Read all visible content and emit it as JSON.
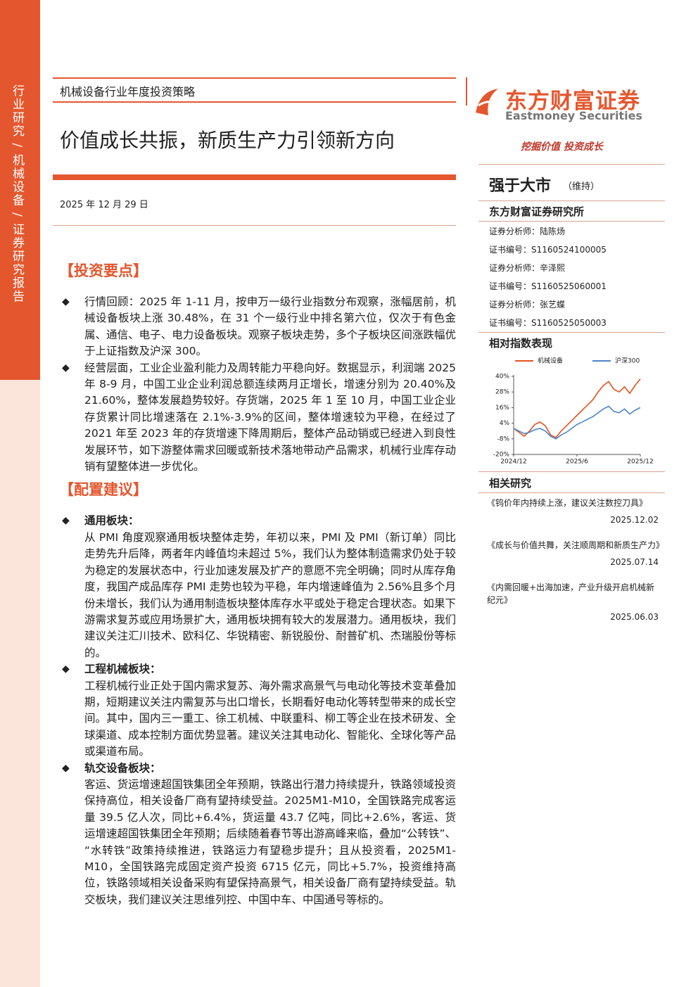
{
  "sidebar": "行业研究 / 机械设备 / 证券研究报告",
  "header": {
    "category": "机械设备行业年度投资策略",
    "title": "价值成长共振，新质生产力引领新方向",
    "date": "2025 年 12 月 29 日"
  },
  "brand": {
    "name_cn": "东方财富证券",
    "name_en": "Eastmoney Securities",
    "slogan": "挖掘价值 投资成长"
  },
  "rating": {
    "label": "强于大市",
    "note": "（维持）"
  },
  "institute": "东方财富证券研究所",
  "analysts": [
    "证券分析师：陆陈炀",
    "证书编号：S1160524100005",
    "证券分析师：辛泽熙",
    "证书编号：S1160525060001",
    "证券分析师：张艺蝶",
    "证书编号：S1160525050003"
  ],
  "chart_section": "相对指数表现",
  "chart_data": {
    "type": "line",
    "categories": [
      "2024/12",
      null,
      null,
      null,
      null,
      null,
      null,
      null,
      null,
      null,
      null,
      null,
      "2025/6",
      null,
      null,
      null,
      null,
      null,
      null,
      null,
      null,
      null,
      null,
      null,
      "2025/12"
    ],
    "series": [
      {
        "name": "机械设备",
        "color": "#e8501e",
        "values": [
          0,
          -3,
          -6,
          -2,
          3,
          5,
          2,
          -5,
          -7,
          -2,
          2,
          6,
          10,
          14,
          18,
          22,
          28,
          33,
          36,
          30,
          28,
          32,
          27,
          33,
          38
        ]
      },
      {
        "name": "沪深300",
        "color": "#4a86c8",
        "values": [
          0,
          -2,
          -4,
          -3,
          -1,
          0,
          -2,
          -6,
          -8,
          -5,
          -3,
          0,
          3,
          5,
          7,
          9,
          12,
          15,
          17,
          13,
          12,
          15,
          11,
          14,
          16
        ]
      }
    ],
    "ylim": [
      -20,
      40
    ],
    "yticks": [
      {
        "value": 40,
        "label": "40%"
      },
      {
        "value": 28,
        "label": "28%"
      },
      {
        "value": 16,
        "label": "16%"
      },
      {
        "value": 4,
        "label": "4%"
      },
      {
        "value": -8,
        "label": "-8%"
      },
      {
        "value": -20,
        "label": "-20%"
      }
    ],
    "legend": "top"
  },
  "related": {
    "title": "相关研究",
    "items": [
      {
        "title": "《钨价年内持续上涨，建议关注数控刀具》",
        "date": "2025.12.02"
      },
      {
        "title": "《成长与价值共舞，关注顺周期和新质生产力》",
        "date": "2025.07.14"
      },
      {
        "title": "《内需回暖+出海加速，产业升级开启机械新纪元》",
        "date": "2025.06.03"
      }
    ]
  },
  "sections": [
    {
      "title": "【投资要点】",
      "bullets": [
        {
          "text": "行情回顾：2025 年 1-11 月，按申万一级行业指数分布观察，涨幅居前，机械设备板块上涨 30.48%，在 31 个一级行业中排名第六位，仅次于有色金属、通信、电子、电力设备板块。观察子板块走势，多个子板块区间涨跌幅优于上证指数及沪深 300。"
        },
        {
          "text": "经营层面，工业企业盈利能力及周转能力平稳向好。数据显示，利润端 2025 年 8-9 月，中国工业企业利润总额连续两月正增长，增速分别为 20.40%及 21.60%，整体发展趋势较好。存货端，2025 年 1 至 10 月，中国工业企业存货累计同比增速落在 2.1%-3.9%的区间，整体增速较为平稳，在经过了 2021 年至 2023 年的存货增速下降周期后，整体产品动销或已经进入到良性发展环节，如下游整体需求回暖或新技术落地带动产品需求，机械行业库存动销有望整体进一步优化。"
        }
      ]
    },
    {
      "title": "【配置建议】",
      "bullets": [
        {
          "heading": "通用板块：",
          "text": "从 PMI 角度观察通用板块整体走势，年初以来，PMI 及 PMI（新订单）同比走势先升后降，两者年内峰值均未超过 5%，我们认为整体制造需求仍处于较为稳定的发展状态中，行业加速发展及扩产的意愿不完全明确；同时从库存角度，我国产成品库存 PMI 走势也较为平稳，年内增速峰值为 2.56%且多个月份未增长，我们认为通用制造板块整体库存水平或处于稳定合理状态。如果下游需求复苏或应用场景扩大，通用板块拥有较大的发展潜力。通用板块，我们建议关注汇川技术、欧科亿、华锐精密、新锐股份、耐普矿机、杰瑞股份等标的。"
        },
        {
          "heading": "工程机械板块：",
          "text": "工程机械行业正处于国内需求复苏、海外需求高景气与电动化等技术变革叠加期，短期建议关注内需复苏与出口增长，长期看好电动化等转型带来的成长空间。其中，国内三一重工、徐工机械、中联重科、柳工等企业在技术研发、全球渠道、成本控制方面优势显著。建议关注其电动化、智能化、全球化等产品或渠道布局。"
        },
        {
          "heading": "轨交设备板块：",
          "text": "客运、货运增速超国铁集团全年预期，铁路出行潜力持续提升，铁路领域投资保持高位，相关设备厂商有望持续受益。2025M1-M10，全国铁路完成客运量 39.5 亿人次，同比+6.4%，货运量 43.7 亿吨，同比+2.6%，客运、货运增速超国铁集团全年预期；后续随着春节等出游高峰来临，叠加“公转铁”、“水转铁”政策持续推进，铁路运力有望稳步提升；且从投资看，2025M1-M10，全国铁路完成固定资产投资 6715 亿元，同比+5.7%，投资维持高位，铁路领域相关设备采购有望保持高景气，相关设备厂商有望持续受益。轨交板块，我们建议关注思维列控、中国中车、中国通号等标的。"
        }
      ]
    }
  ]
}
